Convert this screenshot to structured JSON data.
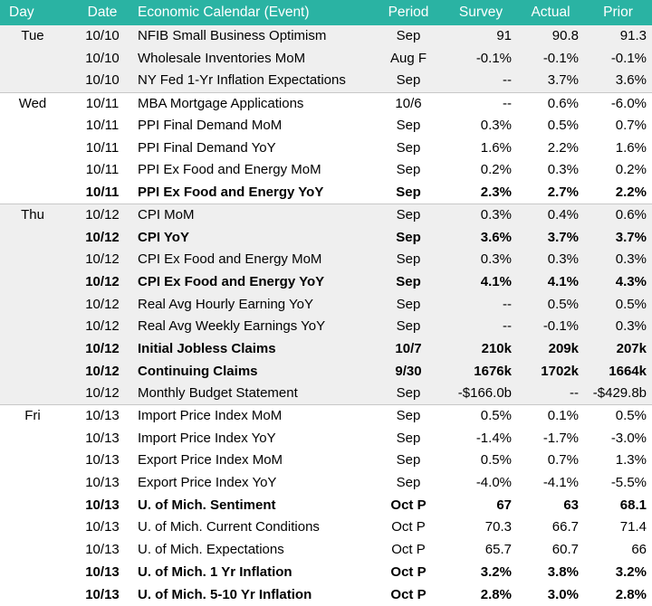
{
  "header": {
    "day": "Day",
    "date": "Date",
    "event": "Economic Calendar (Event)",
    "period": "Period",
    "survey": "Survey",
    "actual": "Actual",
    "prior": "Prior"
  },
  "colors": {
    "header_bg": "#2ab3a3",
    "header_text": "#ffffff",
    "shaded_group_bg": "#efefef"
  },
  "rows": [
    {
      "day": "Tue",
      "date": "10/10",
      "event": "NFIB Small Business Optimism",
      "period": "Sep",
      "survey": "91",
      "actual": "90.8",
      "prior": "91.3",
      "bold": false,
      "shaded": true,
      "group_start": false
    },
    {
      "day": "",
      "date": "10/10",
      "event": "Wholesale Inventories MoM",
      "period": "Aug F",
      "survey": "-0.1%",
      "actual": "-0.1%",
      "prior": "-0.1%",
      "bold": false,
      "shaded": true,
      "group_start": false
    },
    {
      "day": "",
      "date": "10/10",
      "event": "NY Fed 1-Yr Inflation Expectations",
      "period": "Sep",
      "survey": "--",
      "actual": "3.7%",
      "prior": "3.6%",
      "bold": false,
      "shaded": true,
      "group_start": false
    },
    {
      "day": "Wed",
      "date": "10/11",
      "event": "MBA Mortgage Applications",
      "period": "10/6",
      "survey": "--",
      "actual": "0.6%",
      "prior": "-6.0%",
      "bold": false,
      "shaded": false,
      "group_start": true
    },
    {
      "day": "",
      "date": "10/11",
      "event": "PPI Final Demand MoM",
      "period": "Sep",
      "survey": "0.3%",
      "actual": "0.5%",
      "prior": "0.7%",
      "bold": false,
      "shaded": false,
      "group_start": false
    },
    {
      "day": "",
      "date": "10/11",
      "event": "PPI Final Demand YoY",
      "period": "Sep",
      "survey": "1.6%",
      "actual": "2.2%",
      "prior": "1.6%",
      "bold": false,
      "shaded": false,
      "group_start": false
    },
    {
      "day": "",
      "date": "10/11",
      "event": "PPI Ex Food and Energy MoM",
      "period": "Sep",
      "survey": "0.2%",
      "actual": "0.3%",
      "prior": "0.2%",
      "bold": false,
      "shaded": false,
      "group_start": false
    },
    {
      "day": "",
      "date": "10/11",
      "event": "PPI Ex Food and Energy YoY",
      "period": "Sep",
      "survey": "2.3%",
      "actual": "2.7%",
      "prior": "2.2%",
      "bold": true,
      "shaded": false,
      "group_start": false
    },
    {
      "day": "Thu",
      "date": "10/12",
      "event": "CPI MoM",
      "period": "Sep",
      "survey": "0.3%",
      "actual": "0.4%",
      "prior": "0.6%",
      "bold": false,
      "shaded": true,
      "group_start": true
    },
    {
      "day": "",
      "date": "10/12",
      "event": "CPI YoY",
      "period": "Sep",
      "survey": "3.6%",
      "actual": "3.7%",
      "prior": "3.7%",
      "bold": true,
      "shaded": true,
      "group_start": false
    },
    {
      "day": "",
      "date": "10/12",
      "event": "CPI Ex Food and Energy MoM",
      "period": "Sep",
      "survey": "0.3%",
      "actual": "0.3%",
      "prior": "0.3%",
      "bold": false,
      "shaded": true,
      "group_start": false
    },
    {
      "day": "",
      "date": "10/12",
      "event": "CPI Ex Food and Energy YoY",
      "period": "Sep",
      "survey": "4.1%",
      "actual": "4.1%",
      "prior": "4.3%",
      "bold": true,
      "shaded": true,
      "group_start": false
    },
    {
      "day": "",
      "date": "10/12",
      "event": "Real Avg Hourly Earning YoY",
      "period": "Sep",
      "survey": "--",
      "actual": "0.5%",
      "prior": "0.5%",
      "bold": false,
      "shaded": true,
      "group_start": false
    },
    {
      "day": "",
      "date": "10/12",
      "event": "Real Avg Weekly Earnings YoY",
      "period": "Sep",
      "survey": "--",
      "actual": "-0.1%",
      "prior": "0.3%",
      "bold": false,
      "shaded": true,
      "group_start": false
    },
    {
      "day": "",
      "date": "10/12",
      "event": "Initial Jobless Claims",
      "period": "10/7",
      "survey": "210k",
      "actual": "209k",
      "prior": "207k",
      "bold": true,
      "shaded": true,
      "group_start": false
    },
    {
      "day": "",
      "date": "10/12",
      "event": "Continuing Claims",
      "period": "9/30",
      "survey": "1676k",
      "actual": "1702k",
      "prior": "1664k",
      "bold": true,
      "shaded": true,
      "group_start": false
    },
    {
      "day": "",
      "date": "10/12",
      "event": "Monthly Budget Statement",
      "period": "Sep",
      "survey": "-$166.0b",
      "actual": "--",
      "prior": "-$429.8b",
      "bold": false,
      "shaded": true,
      "group_start": false
    },
    {
      "day": "Fri",
      "date": "10/13",
      "event": "Import Price Index MoM",
      "period": "Sep",
      "survey": "0.5%",
      "actual": "0.1%",
      "prior": "0.5%",
      "bold": false,
      "shaded": false,
      "group_start": true
    },
    {
      "day": "",
      "date": "10/13",
      "event": "Import Price Index YoY",
      "period": "Sep",
      "survey": "-1.4%",
      "actual": "-1.7%",
      "prior": "-3.0%",
      "bold": false,
      "shaded": false,
      "group_start": false
    },
    {
      "day": "",
      "date": "10/13",
      "event": "Export Price Index MoM",
      "period": "Sep",
      "survey": "0.5%",
      "actual": "0.7%",
      "prior": "1.3%",
      "bold": false,
      "shaded": false,
      "group_start": false
    },
    {
      "day": "",
      "date": "10/13",
      "event": "Export Price Index YoY",
      "period": "Sep",
      "survey": "-4.0%",
      "actual": "-4.1%",
      "prior": "-5.5%",
      "bold": false,
      "shaded": false,
      "group_start": false
    },
    {
      "day": "",
      "date": "10/13",
      "event": "U. of Mich. Sentiment",
      "period": "Oct P",
      "survey": "67",
      "actual": "63",
      "prior": "68.1",
      "bold": true,
      "shaded": false,
      "group_start": false
    },
    {
      "day": "",
      "date": "10/13",
      "event": "U. of Mich. Current Conditions",
      "period": "Oct P",
      "survey": "70.3",
      "actual": "66.7",
      "prior": "71.4",
      "bold": false,
      "shaded": false,
      "group_start": false
    },
    {
      "day": "",
      "date": "10/13",
      "event": "U. of Mich. Expectations",
      "period": "Oct P",
      "survey": "65.7",
      "actual": "60.7",
      "prior": "66",
      "bold": false,
      "shaded": false,
      "group_start": false
    },
    {
      "day": "",
      "date": "10/13",
      "event": "U. of Mich. 1 Yr Inflation",
      "period": "Oct P",
      "survey": "3.2%",
      "actual": "3.8%",
      "prior": "3.2%",
      "bold": true,
      "shaded": false,
      "group_start": false
    },
    {
      "day": "",
      "date": "10/13",
      "event": "U. of Mich. 5-10 Yr Inflation",
      "period": "Oct P",
      "survey": "2.8%",
      "actual": "3.0%",
      "prior": "2.8%",
      "bold": true,
      "shaded": false,
      "group_start": false
    }
  ]
}
